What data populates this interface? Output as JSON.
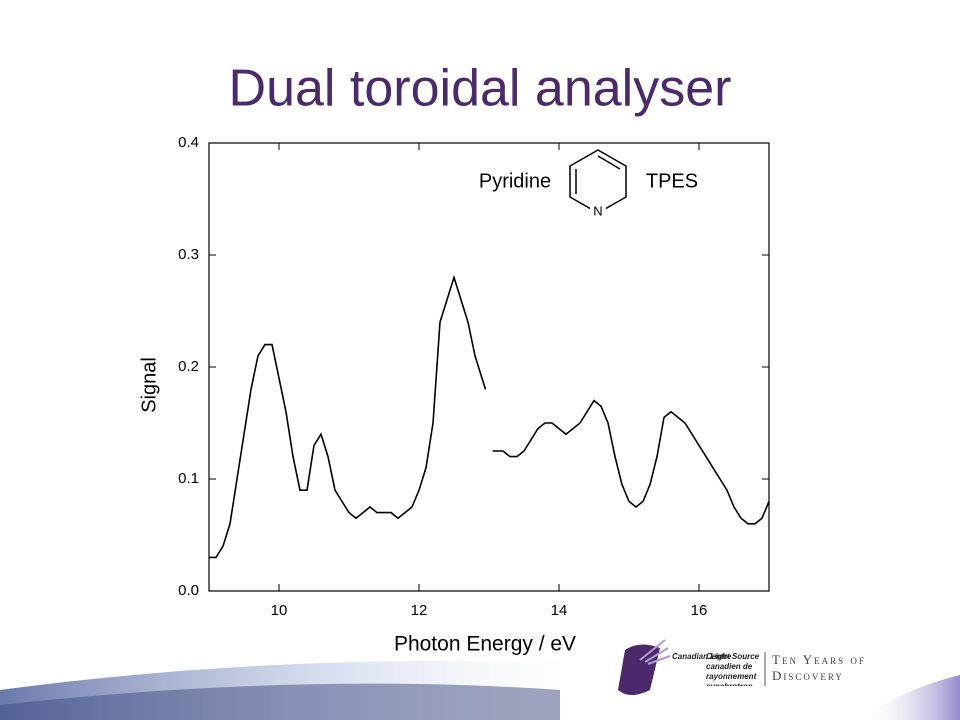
{
  "chart_data": {
    "type": "line",
    "title": "Dual toroidal analyser",
    "x_label": "Photon Energy / eV",
    "y_label": "Signal",
    "annotations": [
      "Pyridine",
      "TPES",
      "N"
    ],
    "xlim": [
      9,
      17
    ],
    "xticks": [
      10,
      12,
      14,
      16
    ],
    "ylim": [
      0,
      0.4
    ],
    "yticks": [
      {
        "value": 0,
        "label": "0.0"
      },
      0.1,
      0.2,
      0.3,
      0.4
    ],
    "x": [
      9.0,
      9.1,
      9.2,
      9.3,
      9.4,
      9.5,
      9.6,
      9.7,
      9.8,
      9.9,
      10.0,
      10.1,
      10.2,
      10.3,
      10.4,
      10.5,
      10.6,
      10.7,
      10.8,
      10.9,
      11.0,
      11.1,
      11.2,
      11.3,
      11.4,
      11.5,
      11.6,
      11.7,
      11.8,
      11.9,
      12.0,
      12.1,
      12.2,
      12.3,
      12.4,
      12.5,
      12.6,
      12.7,
      12.8,
      12.9,
      12.95,
      13.0,
      13.05,
      13.1,
      13.2,
      13.3,
      13.4,
      13.5,
      13.6,
      13.7,
      13.8,
      13.9,
      14.0,
      14.1,
      14.2,
      14.3,
      14.4,
      14.5,
      14.6,
      14.7,
      14.8,
      14.9,
      15.0,
      15.1,
      15.2,
      15.3,
      15.4,
      15.5,
      15.6,
      15.7,
      15.8,
      15.9,
      16.0,
      16.1,
      16.2,
      16.3,
      16.4,
      16.5,
      16.6,
      16.7,
      16.8,
      16.9,
      17.0
    ],
    "series": [
      {
        "color": "#000000",
        "values": [
          0.03,
          0.03,
          0.04,
          0.06,
          0.1,
          0.14,
          0.18,
          0.21,
          0.22,
          0.22,
          0.19,
          0.16,
          0.12,
          0.09,
          0.09,
          0.13,
          0.14,
          0.12,
          0.09,
          0.08,
          0.07,
          0.065,
          0.07,
          0.075,
          0.07,
          0.07,
          0.07,
          0.065,
          0.07,
          0.075,
          0.09,
          0.11,
          0.15,
          0.24,
          0.26,
          0.28,
          0.26,
          0.24,
          0.21,
          0.19,
          0.18,
          null,
          0.125,
          0.125,
          0.125,
          0.12,
          0.12,
          0.125,
          0.135,
          0.145,
          0.15,
          0.15,
          0.145,
          0.14,
          0.145,
          0.15,
          0.16,
          0.17,
          0.165,
          0.15,
          0.12,
          0.095,
          0.08,
          0.075,
          0.08,
          0.095,
          0.12,
          0.155,
          0.16,
          0.155,
          0.15,
          0.14,
          0.13,
          0.12,
          0.11,
          0.1,
          0.09,
          0.075,
          0.065,
          0.06,
          0.06,
          0.065,
          0.08
        ]
      }
    ]
  },
  "logo": {
    "name": "Canadian Light Source",
    "name_fr": "Centre canadien de rayonnement synchrotron",
    "tagline": "Ten Years of Discovery"
  }
}
